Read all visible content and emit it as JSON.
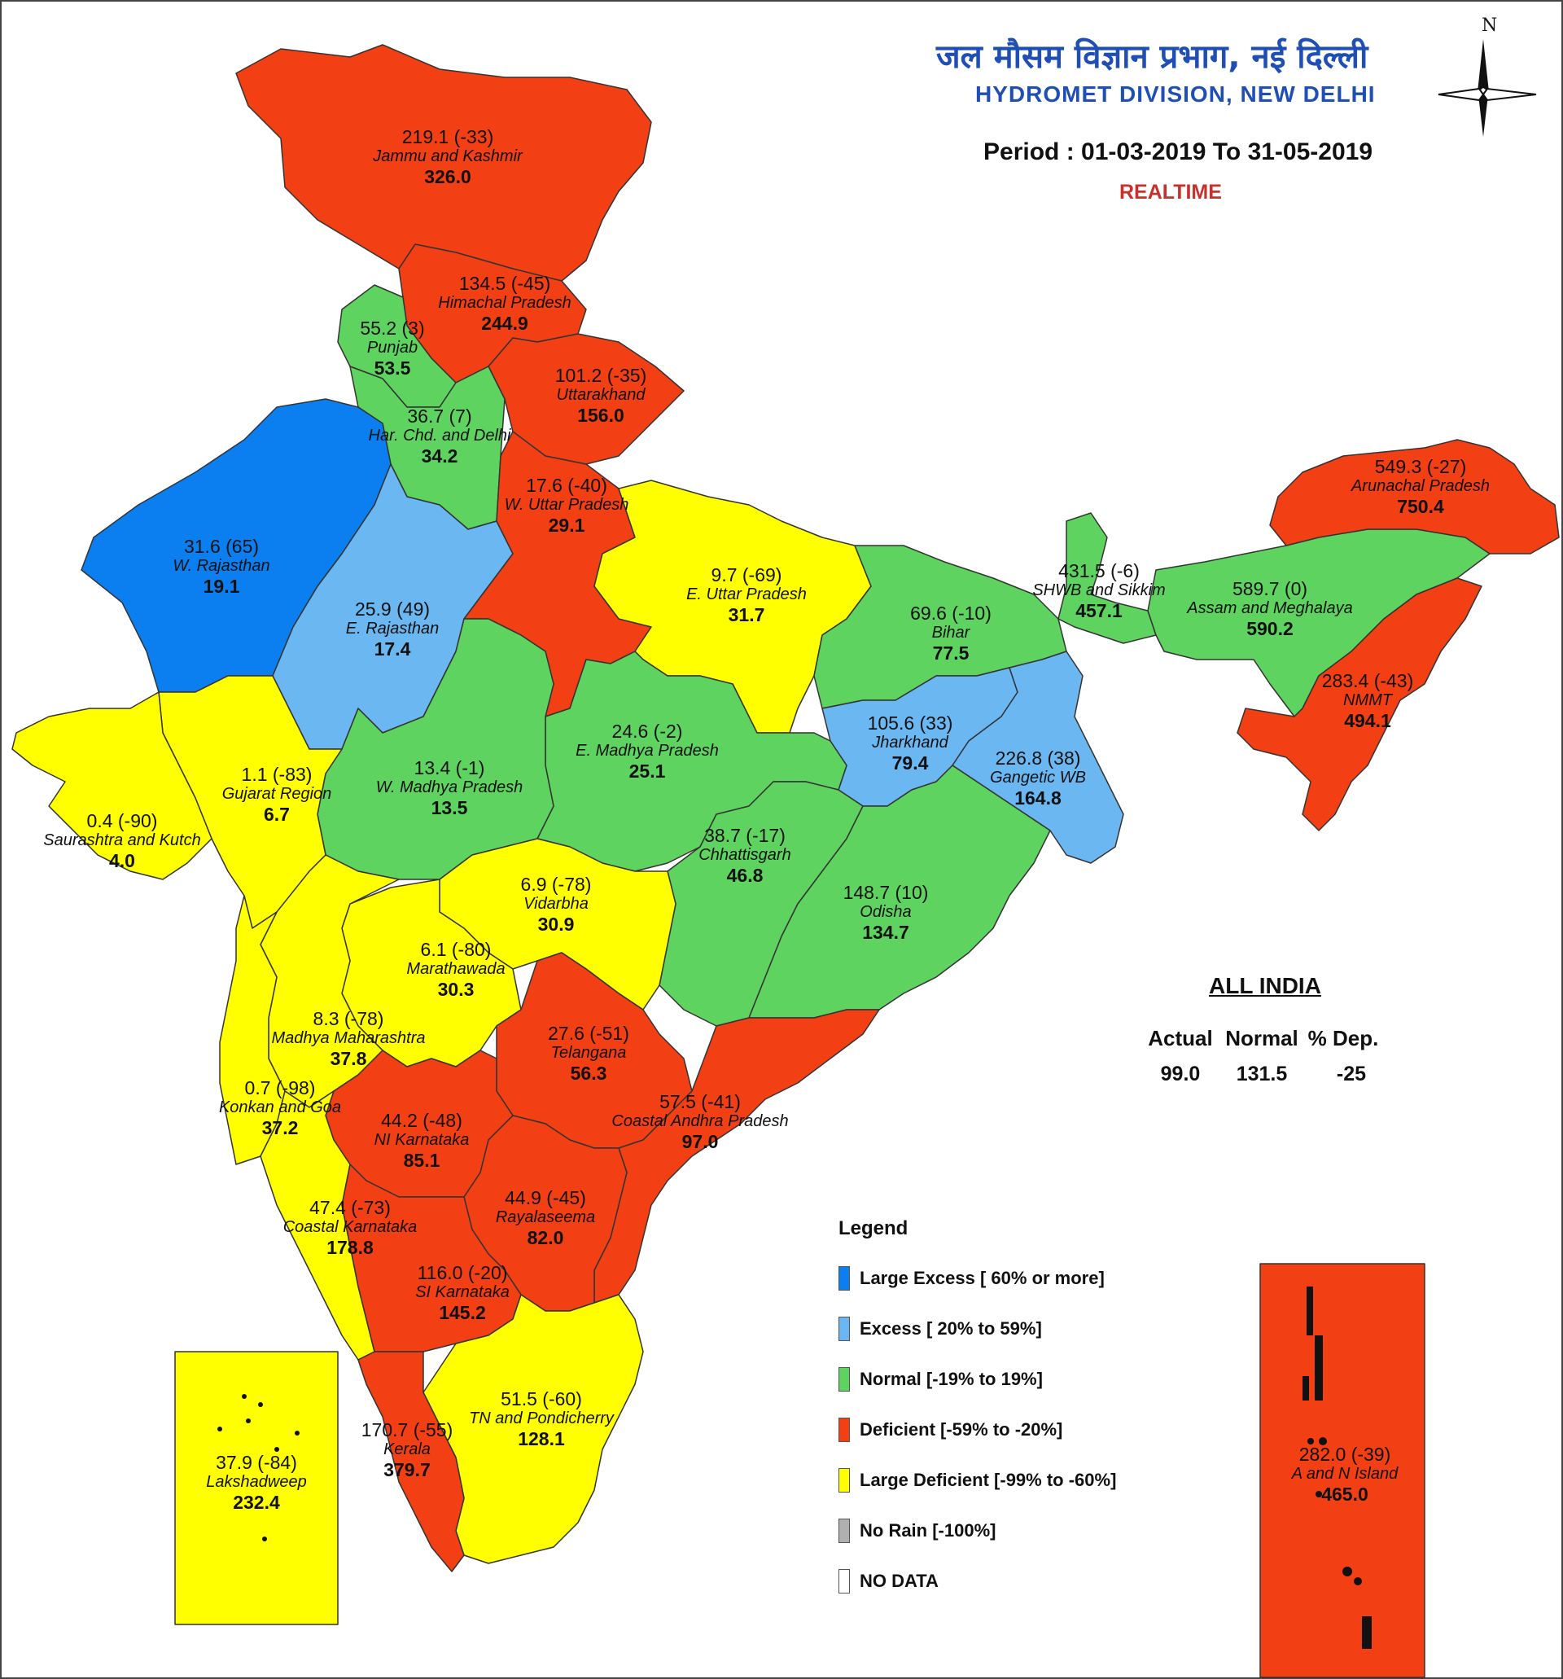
{
  "header": {
    "title_hindi": "जल मौसम विज्ञान प्रभाग, नई दिल्ली",
    "title_english": "HYDROMET DIVISION, NEW DELHI",
    "period": "Period : 01-03-2019 To 31-05-2019",
    "mode": "REALTIME",
    "compass_label": "N"
  },
  "colors": {
    "large_excess": "#0b7ff0",
    "excess": "#6bb7f2",
    "normal": "#5fd35f",
    "deficient": "#f23f14",
    "large_deficient": "#ffff00",
    "no_rain": "#b0b0b0",
    "no_data": "#ffffff"
  },
  "regions": [
    {
      "name": "Jammu and Kashmir",
      "actual": "219.1 (-33)",
      "normal": "326.0",
      "category": "deficient"
    },
    {
      "name": "Himachal Pradesh",
      "actual": "134.5 (-45)",
      "normal": "244.9",
      "category": "deficient"
    },
    {
      "name": "Punjab",
      "actual": "55.2 (3)",
      "normal": "53.5",
      "category": "normal"
    },
    {
      "name": "Uttarakhand",
      "actual": "101.2 (-35)",
      "normal": "156.0",
      "category": "deficient"
    },
    {
      "name": "Har. Chd. and Delhi",
      "actual": "36.7 (7)",
      "normal": "34.2",
      "category": "normal"
    },
    {
      "name": "W. Uttar Pradesh",
      "actual": "17.6 (-40)",
      "normal": "29.1",
      "category": "deficient"
    },
    {
      "name": "W. Rajasthan",
      "actual": "31.6 (65)",
      "normal": "19.1",
      "category": "large_excess"
    },
    {
      "name": "E. Rajasthan",
      "actual": "25.9 (49)",
      "normal": "17.4",
      "category": "excess"
    },
    {
      "name": "E. Uttar Pradesh",
      "actual": "9.7 (-69)",
      "normal": "31.7",
      "category": "large_deficient"
    },
    {
      "name": "Bihar",
      "actual": "69.6 (-10)",
      "normal": "77.5",
      "category": "normal"
    },
    {
      "name": "SHWB and Sikkim",
      "actual": "431.5 (-6)",
      "normal": "457.1",
      "category": "normal"
    },
    {
      "name": "Assam and Meghalaya",
      "actual": "589.7 (0)",
      "normal": "590.2",
      "category": "normal"
    },
    {
      "name": "Arunachal Pradesh",
      "actual": "549.3 (-27)",
      "normal": "750.4",
      "category": "deficient"
    },
    {
      "name": "NMMT",
      "actual": "283.4 (-43)",
      "normal": "494.1",
      "category": "deficient"
    },
    {
      "name": "Jharkhand",
      "actual": "105.6 (33)",
      "normal": "79.4",
      "category": "excess"
    },
    {
      "name": "Gangetic WB",
      "actual": "226.8 (38)",
      "normal": "164.8",
      "category": "excess"
    },
    {
      "name": "E. Madhya Pradesh",
      "actual": "24.6 (-2)",
      "normal": "25.1",
      "category": "normal"
    },
    {
      "name": "W. Madhya Pradesh",
      "actual": "13.4 (-1)",
      "normal": "13.5",
      "category": "normal"
    },
    {
      "name": "Gujarat Region",
      "actual": "1.1 (-83)",
      "normal": "6.7",
      "category": "large_deficient"
    },
    {
      "name": "Saurashtra and Kutch",
      "actual": "0.4 (-90)",
      "normal": "4.0",
      "category": "large_deficient"
    },
    {
      "name": "Chhattisgarh",
      "actual": "38.7 (-17)",
      "normal": "46.8",
      "category": "normal"
    },
    {
      "name": "Odisha",
      "actual": "148.7 (10)",
      "normal": "134.7",
      "category": "normal"
    },
    {
      "name": "Vidarbha",
      "actual": "6.9 (-78)",
      "normal": "30.9",
      "category": "large_deficient"
    },
    {
      "name": "Marathawada",
      "actual": "6.1 (-80)",
      "normal": "30.3",
      "category": "large_deficient"
    },
    {
      "name": "Madhya Maharashtra",
      "actual": "8.3 (-78)",
      "normal": "37.8",
      "category": "large_deficient"
    },
    {
      "name": "Konkan and Goa",
      "actual": "0.7 (-98)",
      "normal": "37.2",
      "category": "large_deficient"
    },
    {
      "name": "Telangana",
      "actual": "27.6 (-51)",
      "normal": "56.3",
      "category": "deficient"
    },
    {
      "name": "Coastal Andhra Pradesh",
      "actual": "57.5 (-41)",
      "normal": "97.0",
      "category": "deficient"
    },
    {
      "name": "NI Karnataka",
      "actual": "44.2 (-48)",
      "normal": "85.1",
      "category": "deficient"
    },
    {
      "name": "Rayalaseema",
      "actual": "44.9 (-45)",
      "normal": "82.0",
      "category": "deficient"
    },
    {
      "name": "Coastal Karnataka",
      "actual": "47.4 (-73)",
      "normal": "178.8",
      "category": "large_deficient"
    },
    {
      "name": "SI Karnataka",
      "actual": "116.0 (-20)",
      "normal": "145.2",
      "category": "deficient"
    },
    {
      "name": "TN and Pondicherry",
      "actual": "51.5 (-60)",
      "normal": "128.1",
      "category": "large_deficient"
    },
    {
      "name": "Kerala",
      "actual": "170.7 (-55)",
      "normal": "379.7",
      "category": "deficient"
    },
    {
      "name": "Lakshadweep",
      "actual": "37.9 (-84)",
      "normal": "232.4",
      "category": "large_deficient"
    },
    {
      "name": "A and N Island",
      "actual": "282.0 (-39)",
      "normal": "465.0",
      "category": "deficient"
    }
  ],
  "all_india": {
    "title": "ALL INDIA",
    "headers": [
      "Actual",
      "Normal",
      "% Dep."
    ],
    "values": [
      "99.0",
      "131.5",
      "-25"
    ]
  },
  "legend": {
    "title": "Legend",
    "items": [
      {
        "label": "Large Excess [ 60% or more]",
        "category": "large_excess"
      },
      {
        "label": "Excess [ 20% to 59%]",
        "category": "excess"
      },
      {
        "label": "Normal [-19% to 19%]",
        "category": "normal"
      },
      {
        "label": "Deficient [-59% to -20%]",
        "category": "deficient"
      },
      {
        "label": "Large Deficient [-99% to -60%]",
        "category": "large_deficient"
      },
      {
        "label": "No Rain [-100%]",
        "category": "no_rain"
      },
      {
        "label": "NO DATA",
        "category": "no_data"
      }
    ]
  }
}
